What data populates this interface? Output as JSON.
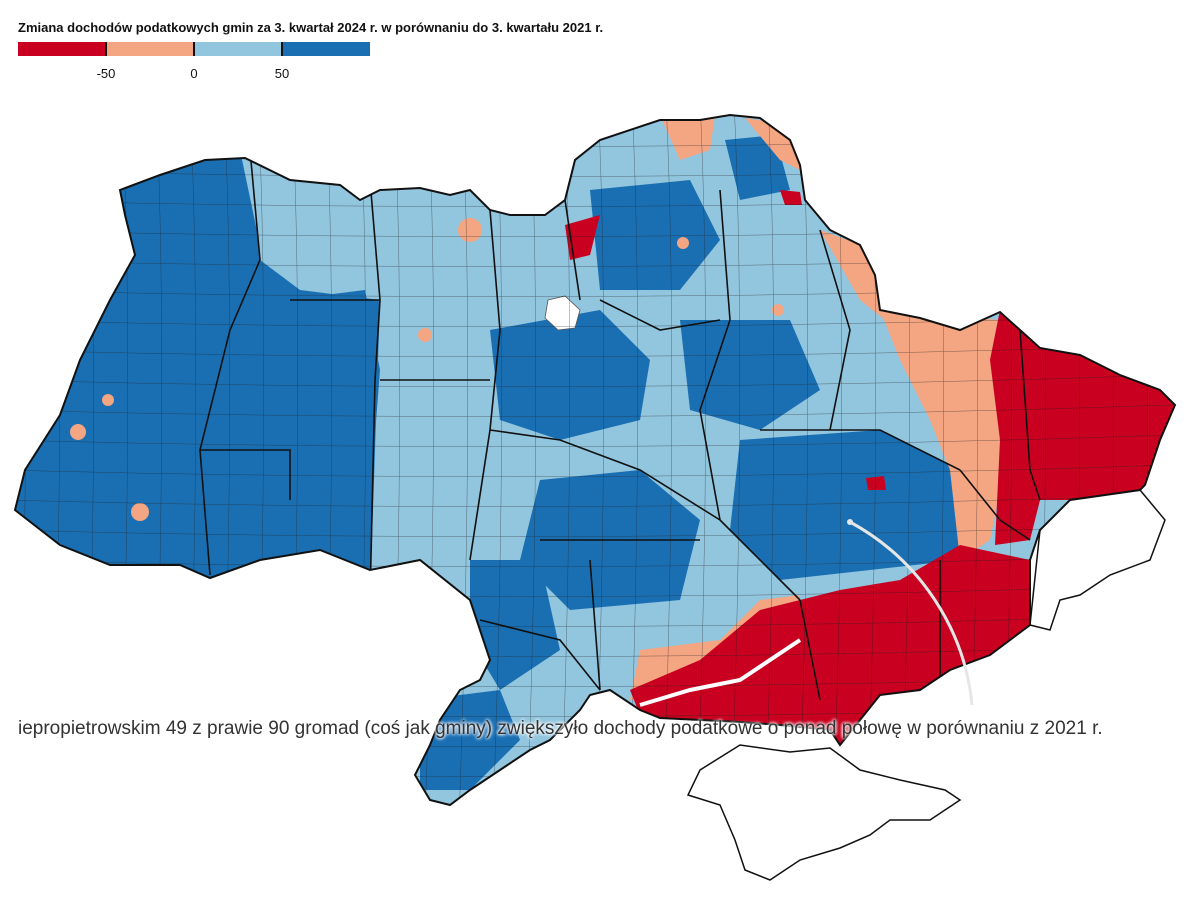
{
  "title": "Zmiana dochodów podatkowych gmin za 3. kwartał 2024 r. w porównaniu do 3. kwartału 2021 r.",
  "legend": {
    "bins": [
      {
        "range": "< -50",
        "color": "#c9001f"
      },
      {
        "range": "-50 – 0",
        "color": "#f4a582"
      },
      {
        "range": "0 – 50",
        "color": "#92c5de"
      },
      {
        "range": "> 50",
        "color": "#1a6fb3"
      }
    ],
    "tick_labels": [
      "-50",
      "0",
      "50"
    ]
  },
  "map": {
    "region": "Ukraina",
    "no_data_color": "#ffffff",
    "border_color": "#111111"
  },
  "annotation": {
    "text": "iepropietrowskim 49 z prawie 90 gromad (coś jak gminy) zwiększyło dochody podatkowe o ponad połowę w porównaniu z 2021 r."
  }
}
